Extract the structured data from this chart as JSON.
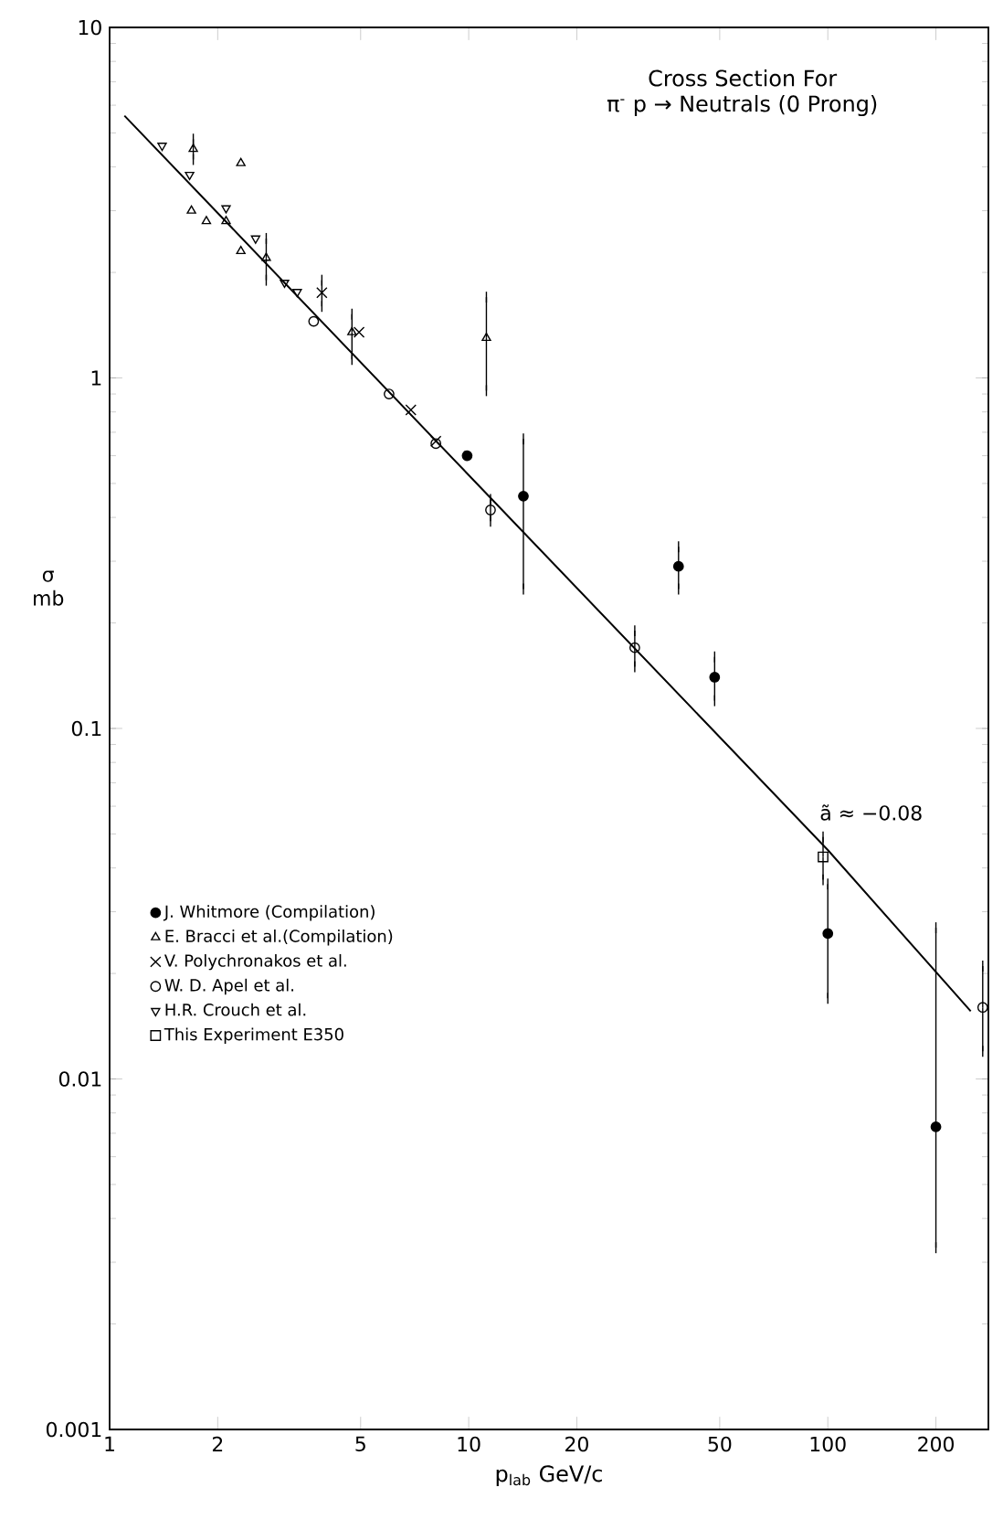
{
  "chart_data": {
    "type": "scatter",
    "title": "Cross Section For",
    "subtitle": "π$^{-}$ p → Neutrals (0 Prong)",
    "xlabel": "p$_{lab}$ GeV/c",
    "ylabel": "σ mb",
    "log": "xy",
    "xlim": [
      1,
      280
    ],
    "ylim": [
      0.001,
      10
    ],
    "xticks": [
      1,
      2,
      5,
      10,
      20,
      50,
      100,
      200
    ],
    "yticks": [
      0.001,
      0.01,
      0.1,
      1,
      10
    ],
    "legend": "bottom left",
    "annotations": [
      "ã ≈ −0.08"
    ],
    "series": [
      {
        "name": "J. Whitmore (Compilation)",
        "color": "#000000",
        "marker": "filled circle",
        "x": [
          9.9,
          14.2,
          38.4,
          48.4,
          100,
          200
        ],
        "values": [
          0.6,
          0.46,
          0.29,
          0.14,
          0.026,
          0.0073
        ],
        "errors": [
          null,
          [
            0.25,
            0.67
          ],
          [
            0.25,
            0.33
          ],
          [
            0.12,
            0.16
          ],
          [
            0.017,
            0.036
          ],
          [
            0.0033,
            0.027
          ]
        ]
      },
      {
        "name": "E. Bracci et al.(Compilation)",
        "color": "#000000",
        "marker": "triangle",
        "x": [
          1.71,
          2.32,
          1.69,
          1.86,
          2.11,
          2.32,
          2.73,
          4.73,
          11.2
        ],
        "values": [
          4.5,
          4.1,
          3.0,
          2.8,
          2.8,
          2.3,
          2.2,
          1.35,
          1.3
        ],
        "errors": [
          [
            4.2,
            4.8
          ],
          null,
          null,
          null,
          null,
          null,
          [
            1.9,
            2.5
          ],
          [
            1.13,
            1.52
          ],
          [
            0.92,
            1.7
          ]
        ]
      },
      {
        "name": "V. Polychronakos et al.",
        "color": "#000000",
        "marker": "cross",
        "x": [
          3.9,
          4.95,
          6.9,
          8.1
        ],
        "values": [
          1.75,
          1.35,
          0.81,
          0.66
        ],
        "errors": [
          [
            1.6,
            1.9
          ],
          null,
          null,
          null
        ]
      },
      {
        "name": "W. D. Apel et al.",
        "color": "#000000",
        "marker": "circle",
        "x": [
          3.7,
          6.0,
          8.1,
          11.5,
          29,
          270
        ],
        "values": [
          1.45,
          0.9,
          0.65,
          0.42,
          0.17,
          0.016
        ],
        "errors": [
          null,
          null,
          null,
          [
            0.39,
            0.45
          ],
          [
            0.15,
            0.19
          ],
          [
            0.012,
            0.021
          ]
        ]
      },
      {
        "name": "H.R. Crouch et al.",
        "color": "#000000",
        "marker": "triangle down",
        "x": [
          1.4,
          1.67,
          2.11,
          2.55,
          3.07,
          3.33
        ],
        "values": [
          4.6,
          3.8,
          3.05,
          2.5,
          1.87,
          1.76
        ]
      },
      {
        "name": "This Experiment E350",
        "color": "#000000",
        "marker": "square",
        "x": [
          97
        ],
        "values": [
          0.043
        ],
        "errors": [
          [
            0.037,
            0.049
          ]
        ]
      },
      {
        "type": "line",
        "color": "#000000",
        "x": [
          1.1,
          100,
          250
        ],
        "values": [
          5.6,
          0.045,
          0.0156
        ]
      }
    ]
  }
}
